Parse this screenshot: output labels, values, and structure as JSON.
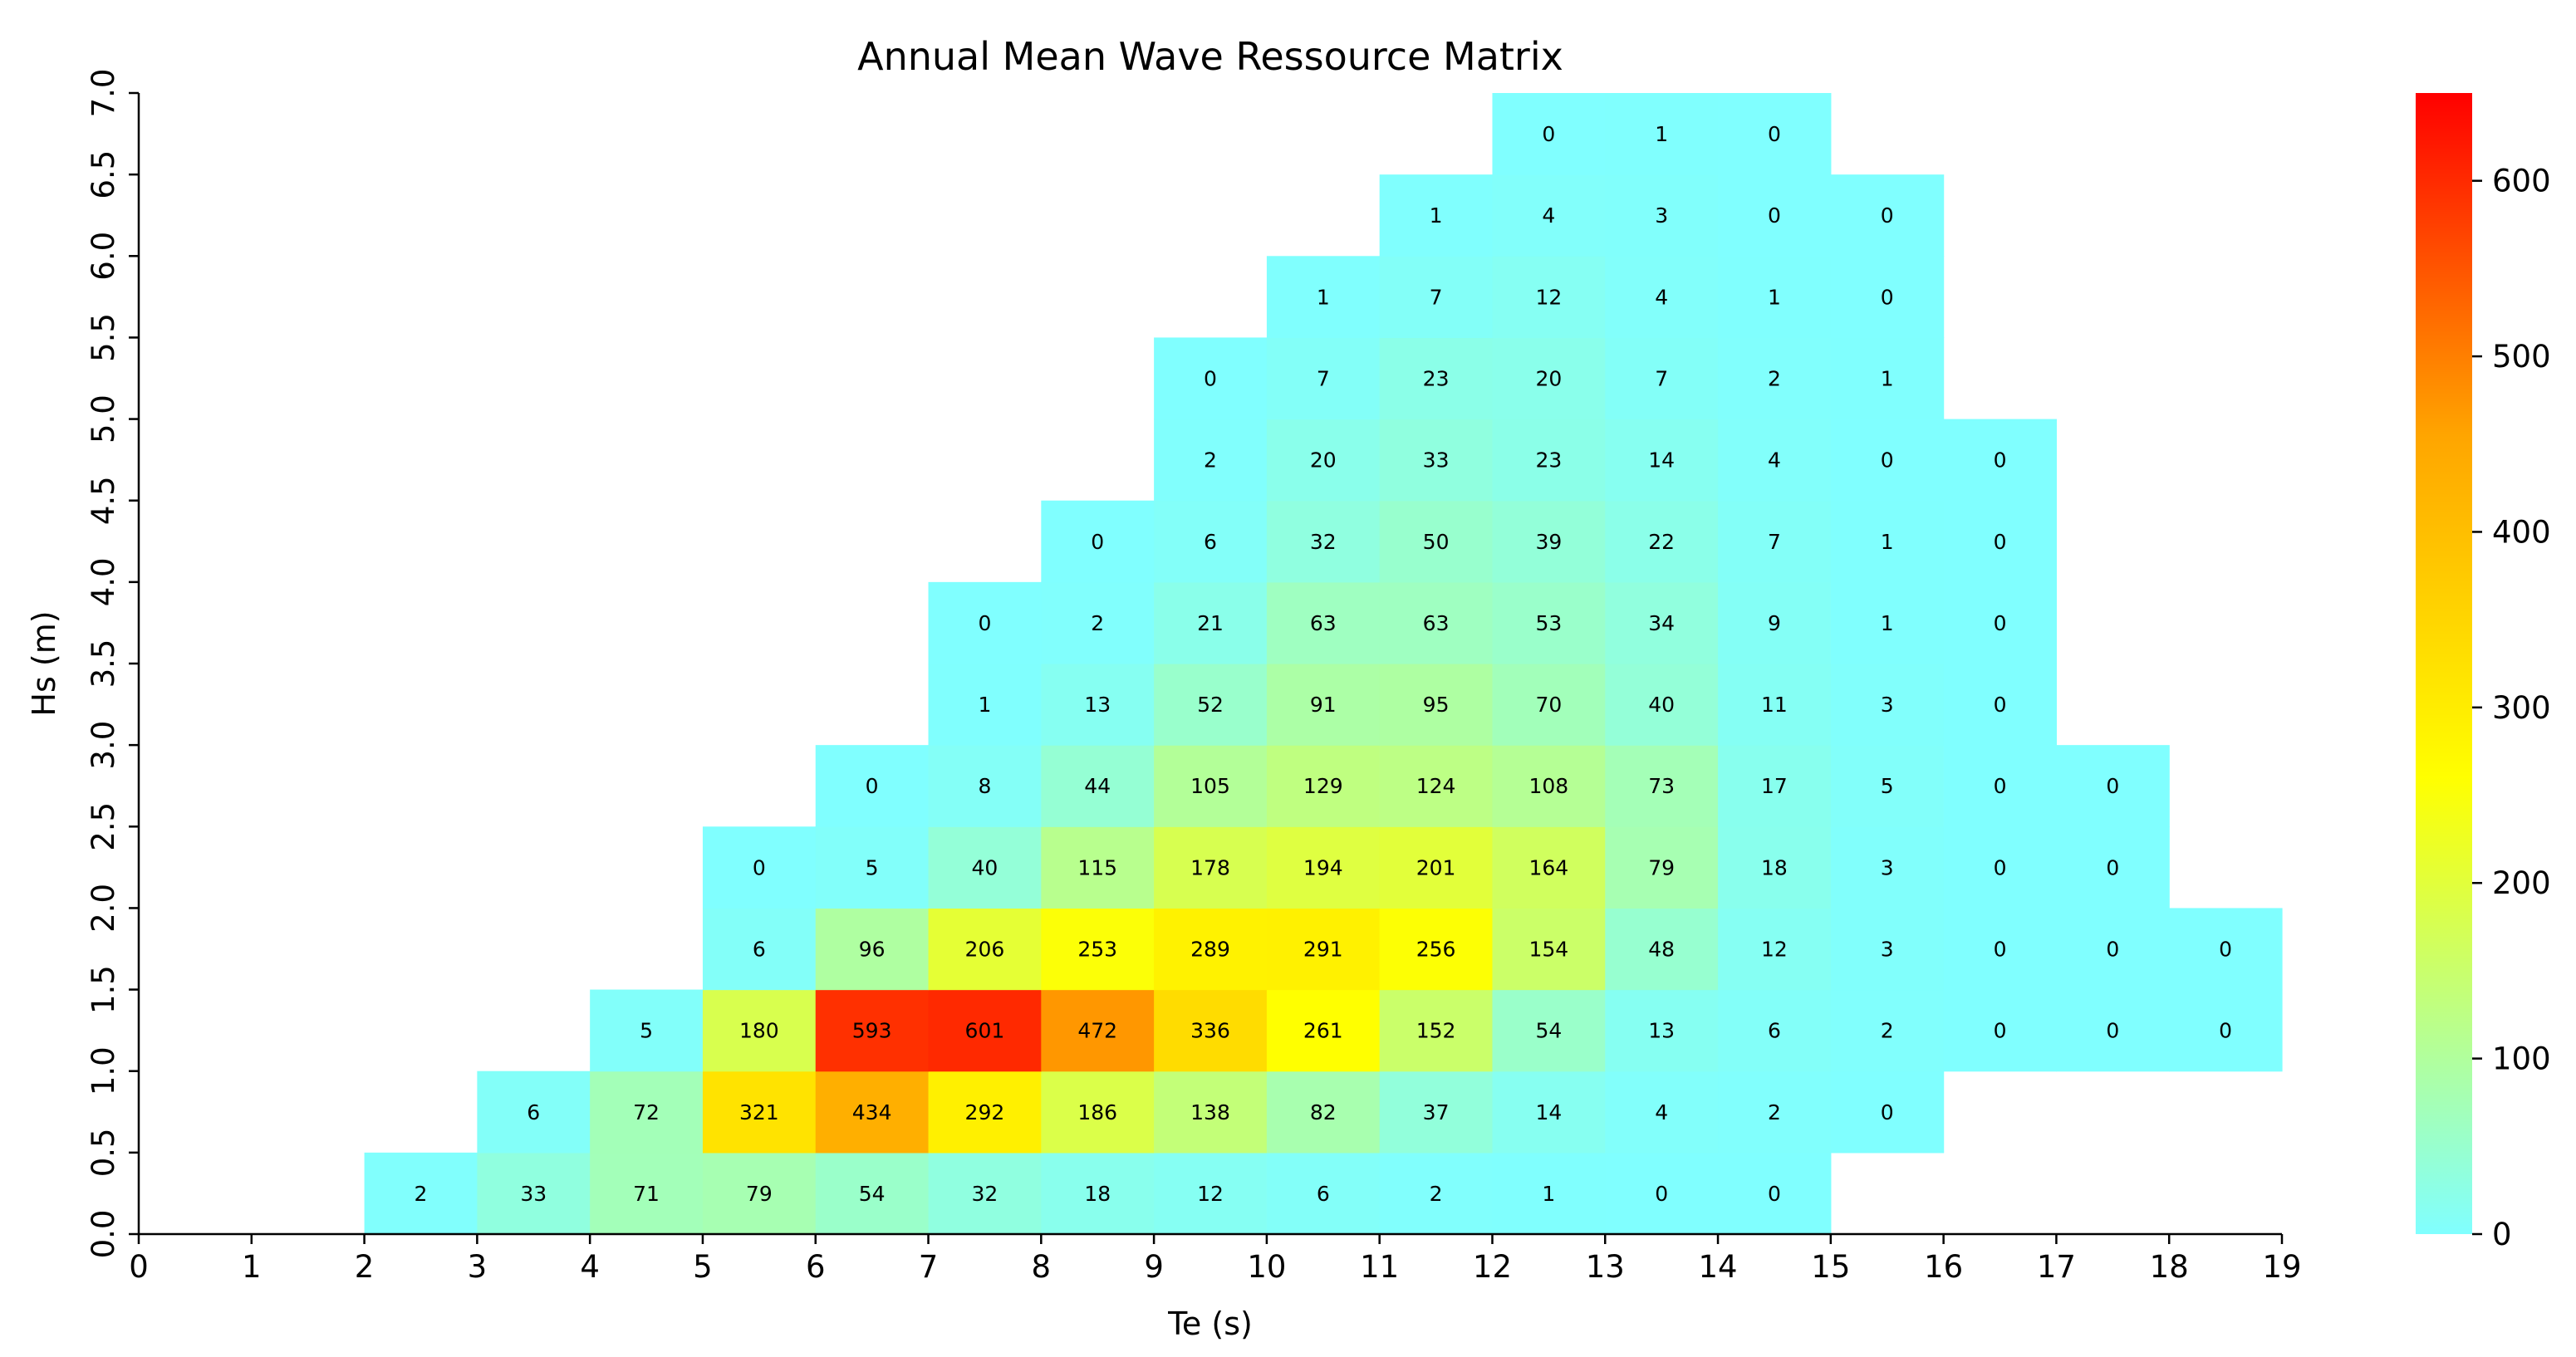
{
  "chart_data": {
    "type": "heatmap",
    "title": "Annual Mean Wave Ressource Matrix",
    "xlabel": "Te (s)",
    "ylabel": "Hs (m)",
    "x_ticks": [
      "0",
      "1",
      "2",
      "3",
      "4",
      "5",
      "6",
      "7",
      "8",
      "9",
      "10",
      "11",
      "12",
      "13",
      "14",
      "15",
      "16",
      "17",
      "18",
      "19"
    ],
    "y_ticks": [
      "0.0",
      "0.5",
      "1.0",
      "1.5",
      "2.0",
      "2.5",
      "3.0",
      "3.5",
      "4.0",
      "4.5",
      "5.0",
      "5.5",
      "6.0",
      "6.5",
      "7.0"
    ],
    "xlim": [
      0,
      19
    ],
    "ylim": [
      0,
      7
    ],
    "bin_width_te": 1,
    "bin_height_hs": 0.5,
    "colormap": [
      "#80ffff",
      "#ffff00",
      "#ffa500",
      "#ff0000"
    ],
    "colorbar": {
      "min": 0,
      "max": 650,
      "ticks": [
        "0",
        "100",
        "200",
        "300",
        "400",
        "500",
        "600"
      ]
    },
    "cells": [
      {
        "te": 2,
        "hs": 0.0,
        "value": 2
      },
      {
        "te": 3,
        "hs": 0.0,
        "value": 33
      },
      {
        "te": 4,
        "hs": 0.0,
        "value": 71
      },
      {
        "te": 5,
        "hs": 0.0,
        "value": 79
      },
      {
        "te": 6,
        "hs": 0.0,
        "value": 54
      },
      {
        "te": 7,
        "hs": 0.0,
        "value": 32
      },
      {
        "te": 8,
        "hs": 0.0,
        "value": 18
      },
      {
        "te": 9,
        "hs": 0.0,
        "value": 12
      },
      {
        "te": 10,
        "hs": 0.0,
        "value": 6
      },
      {
        "te": 11,
        "hs": 0.0,
        "value": 2
      },
      {
        "te": 12,
        "hs": 0.0,
        "value": 1
      },
      {
        "te": 13,
        "hs": 0.0,
        "value": 0
      },
      {
        "te": 14,
        "hs": 0.0,
        "value": 0
      },
      {
        "te": 3,
        "hs": 0.5,
        "value": 6
      },
      {
        "te": 4,
        "hs": 0.5,
        "value": 72
      },
      {
        "te": 5,
        "hs": 0.5,
        "value": 321
      },
      {
        "te": 6,
        "hs": 0.5,
        "value": 434
      },
      {
        "te": 7,
        "hs": 0.5,
        "value": 292
      },
      {
        "te": 8,
        "hs": 0.5,
        "value": 186
      },
      {
        "te": 9,
        "hs": 0.5,
        "value": 138
      },
      {
        "te": 10,
        "hs": 0.5,
        "value": 82
      },
      {
        "te": 11,
        "hs": 0.5,
        "value": 37
      },
      {
        "te": 12,
        "hs": 0.5,
        "value": 14
      },
      {
        "te": 13,
        "hs": 0.5,
        "value": 4
      },
      {
        "te": 14,
        "hs": 0.5,
        "value": 2
      },
      {
        "te": 15,
        "hs": 0.5,
        "value": 0
      },
      {
        "te": 4,
        "hs": 1.0,
        "value": 5
      },
      {
        "te": 5,
        "hs": 1.0,
        "value": 180
      },
      {
        "te": 6,
        "hs": 1.0,
        "value": 593
      },
      {
        "te": 7,
        "hs": 1.0,
        "value": 601
      },
      {
        "te": 8,
        "hs": 1.0,
        "value": 472
      },
      {
        "te": 9,
        "hs": 1.0,
        "value": 336
      },
      {
        "te": 10,
        "hs": 1.0,
        "value": 261
      },
      {
        "te": 11,
        "hs": 1.0,
        "value": 152
      },
      {
        "te": 12,
        "hs": 1.0,
        "value": 54
      },
      {
        "te": 13,
        "hs": 1.0,
        "value": 13
      },
      {
        "te": 14,
        "hs": 1.0,
        "value": 6
      },
      {
        "te": 15,
        "hs": 1.0,
        "value": 2
      },
      {
        "te": 16,
        "hs": 1.0,
        "value": 0
      },
      {
        "te": 17,
        "hs": 1.0,
        "value": 0
      },
      {
        "te": 18,
        "hs": 1.0,
        "value": 0
      },
      {
        "te": 5,
        "hs": 1.5,
        "value": 6
      },
      {
        "te": 6,
        "hs": 1.5,
        "value": 96
      },
      {
        "te": 7,
        "hs": 1.5,
        "value": 206
      },
      {
        "te": 8,
        "hs": 1.5,
        "value": 253
      },
      {
        "te": 9,
        "hs": 1.5,
        "value": 289
      },
      {
        "te": 10,
        "hs": 1.5,
        "value": 291
      },
      {
        "te": 11,
        "hs": 1.5,
        "value": 256
      },
      {
        "te": 12,
        "hs": 1.5,
        "value": 154
      },
      {
        "te": 13,
        "hs": 1.5,
        "value": 48
      },
      {
        "te": 14,
        "hs": 1.5,
        "value": 12
      },
      {
        "te": 15,
        "hs": 1.5,
        "value": 3
      },
      {
        "te": 16,
        "hs": 1.5,
        "value": 0
      },
      {
        "te": 17,
        "hs": 1.5,
        "value": 0
      },
      {
        "te": 18,
        "hs": 1.5,
        "value": 0
      },
      {
        "te": 5,
        "hs": 2.0,
        "value": 0
      },
      {
        "te": 6,
        "hs": 2.0,
        "value": 5
      },
      {
        "te": 7,
        "hs": 2.0,
        "value": 40
      },
      {
        "te": 8,
        "hs": 2.0,
        "value": 115
      },
      {
        "te": 9,
        "hs": 2.0,
        "value": 178
      },
      {
        "te": 10,
        "hs": 2.0,
        "value": 194
      },
      {
        "te": 11,
        "hs": 2.0,
        "value": 201
      },
      {
        "te": 12,
        "hs": 2.0,
        "value": 164
      },
      {
        "te": 13,
        "hs": 2.0,
        "value": 79
      },
      {
        "te": 14,
        "hs": 2.0,
        "value": 18
      },
      {
        "te": 15,
        "hs": 2.0,
        "value": 3
      },
      {
        "te": 16,
        "hs": 2.0,
        "value": 0
      },
      {
        "te": 17,
        "hs": 2.0,
        "value": 0
      },
      {
        "te": 6,
        "hs": 2.5,
        "value": 0
      },
      {
        "te": 7,
        "hs": 2.5,
        "value": 8
      },
      {
        "te": 8,
        "hs": 2.5,
        "value": 44
      },
      {
        "te": 9,
        "hs": 2.5,
        "value": 105
      },
      {
        "te": 10,
        "hs": 2.5,
        "value": 129
      },
      {
        "te": 11,
        "hs": 2.5,
        "value": 124
      },
      {
        "te": 12,
        "hs": 2.5,
        "value": 108
      },
      {
        "te": 13,
        "hs": 2.5,
        "value": 73
      },
      {
        "te": 14,
        "hs": 2.5,
        "value": 17
      },
      {
        "te": 15,
        "hs": 2.5,
        "value": 5
      },
      {
        "te": 16,
        "hs": 2.5,
        "value": 0
      },
      {
        "te": 17,
        "hs": 2.5,
        "value": 0
      },
      {
        "te": 7,
        "hs": 3.0,
        "value": 1
      },
      {
        "te": 8,
        "hs": 3.0,
        "value": 13
      },
      {
        "te": 9,
        "hs": 3.0,
        "value": 52
      },
      {
        "te": 10,
        "hs": 3.0,
        "value": 91
      },
      {
        "te": 11,
        "hs": 3.0,
        "value": 95
      },
      {
        "te": 12,
        "hs": 3.0,
        "value": 70
      },
      {
        "te": 13,
        "hs": 3.0,
        "value": 40
      },
      {
        "te": 14,
        "hs": 3.0,
        "value": 11
      },
      {
        "te": 15,
        "hs": 3.0,
        "value": 3
      },
      {
        "te": 16,
        "hs": 3.0,
        "value": 0
      },
      {
        "te": 7,
        "hs": 3.5,
        "value": 0
      },
      {
        "te": 8,
        "hs": 3.5,
        "value": 2
      },
      {
        "te": 9,
        "hs": 3.5,
        "value": 21
      },
      {
        "te": 10,
        "hs": 3.5,
        "value": 63
      },
      {
        "te": 11,
        "hs": 3.5,
        "value": 63
      },
      {
        "te": 12,
        "hs": 3.5,
        "value": 53
      },
      {
        "te": 13,
        "hs": 3.5,
        "value": 34
      },
      {
        "te": 14,
        "hs": 3.5,
        "value": 9
      },
      {
        "te": 15,
        "hs": 3.5,
        "value": 1
      },
      {
        "te": 16,
        "hs": 3.5,
        "value": 0
      },
      {
        "te": 8,
        "hs": 4.0,
        "value": 0
      },
      {
        "te": 9,
        "hs": 4.0,
        "value": 6
      },
      {
        "te": 10,
        "hs": 4.0,
        "value": 32
      },
      {
        "te": 11,
        "hs": 4.0,
        "value": 50
      },
      {
        "te": 12,
        "hs": 4.0,
        "value": 39
      },
      {
        "te": 13,
        "hs": 4.0,
        "value": 22
      },
      {
        "te": 14,
        "hs": 4.0,
        "value": 7
      },
      {
        "te": 15,
        "hs": 4.0,
        "value": 1
      },
      {
        "te": 16,
        "hs": 4.0,
        "value": 0
      },
      {
        "te": 9,
        "hs": 4.5,
        "value": 2
      },
      {
        "te": 10,
        "hs": 4.5,
        "value": 20
      },
      {
        "te": 11,
        "hs": 4.5,
        "value": 33
      },
      {
        "te": 12,
        "hs": 4.5,
        "value": 23
      },
      {
        "te": 13,
        "hs": 4.5,
        "value": 14
      },
      {
        "te": 14,
        "hs": 4.5,
        "value": 4
      },
      {
        "te": 15,
        "hs": 4.5,
        "value": 0
      },
      {
        "te": 16,
        "hs": 4.5,
        "value": 0
      },
      {
        "te": 9,
        "hs": 5.0,
        "value": 0
      },
      {
        "te": 10,
        "hs": 5.0,
        "value": 7
      },
      {
        "te": 11,
        "hs": 5.0,
        "value": 23
      },
      {
        "te": 12,
        "hs": 5.0,
        "value": 20
      },
      {
        "te": 13,
        "hs": 5.0,
        "value": 7
      },
      {
        "te": 14,
        "hs": 5.0,
        "value": 2
      },
      {
        "te": 15,
        "hs": 5.0,
        "value": 1
      },
      {
        "te": 10,
        "hs": 5.5,
        "value": 1
      },
      {
        "te": 11,
        "hs": 5.5,
        "value": 7
      },
      {
        "te": 12,
        "hs": 5.5,
        "value": 12
      },
      {
        "te": 13,
        "hs": 5.5,
        "value": 4
      },
      {
        "te": 14,
        "hs": 5.5,
        "value": 1
      },
      {
        "te": 15,
        "hs": 5.5,
        "value": 0
      },
      {
        "te": 11,
        "hs": 6.0,
        "value": 1
      },
      {
        "te": 12,
        "hs": 6.0,
        "value": 4
      },
      {
        "te": 13,
        "hs": 6.0,
        "value": 3
      },
      {
        "te": 14,
        "hs": 6.0,
        "value": 0
      },
      {
        "te": 15,
        "hs": 6.0,
        "value": 0
      },
      {
        "te": 12,
        "hs": 6.5,
        "value": 0
      },
      {
        "te": 13,
        "hs": 6.5,
        "value": 1
      },
      {
        "te": 14,
        "hs": 6.5,
        "value": 0
      }
    ]
  }
}
